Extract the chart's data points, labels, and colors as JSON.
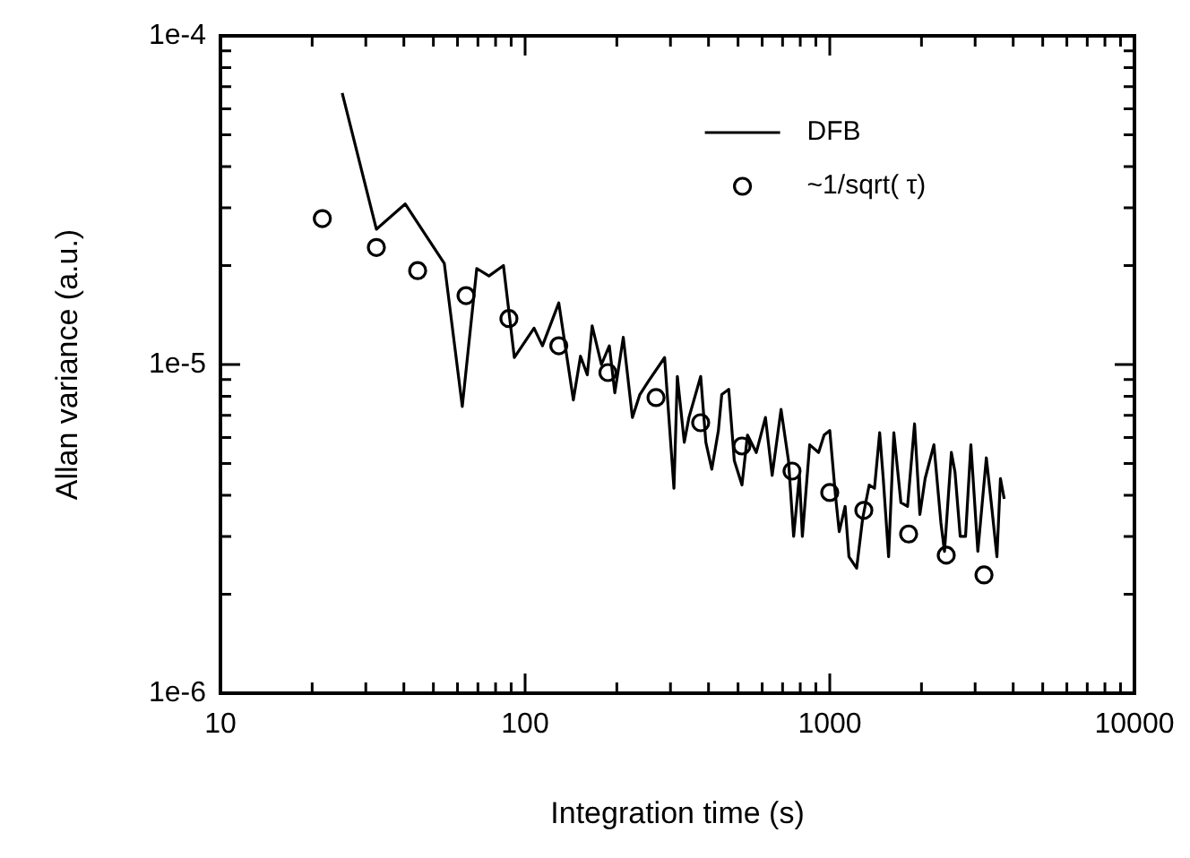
{
  "chart_data": {
    "type": "line",
    "xlabel": "Integration time (s)",
    "ylabel": "Allan variance (a.u.)",
    "log": "xy",
    "xlim": [
      10,
      10000
    ],
    "ylim": [
      1e-06,
      0.0001
    ],
    "xticks": [
      10,
      {
        "value": 20,
        "label": null
      },
      {
        "value": 30,
        "label": null
      },
      {
        "value": 40,
        "label": null
      },
      {
        "value": 50,
        "label": null
      },
      {
        "value": 60,
        "label": null
      },
      {
        "value": 70,
        "label": null
      },
      {
        "value": 80,
        "label": null
      },
      {
        "value": 90,
        "label": null
      },
      100,
      {
        "value": 200,
        "label": null
      },
      {
        "value": 300,
        "label": null
      },
      {
        "value": 400,
        "label": null
      },
      {
        "value": 500,
        "label": null
      },
      {
        "value": 600,
        "label": null
      },
      {
        "value": 700,
        "label": null
      },
      {
        "value": 800,
        "label": null
      },
      {
        "value": 900,
        "label": null
      },
      1000,
      {
        "value": 2000,
        "label": null
      },
      {
        "value": 3000,
        "label": null
      },
      {
        "value": 4000,
        "label": null
      },
      {
        "value": 5000,
        "label": null
      },
      {
        "value": 6000,
        "label": null
      },
      {
        "value": 7000,
        "label": null
      },
      {
        "value": 8000,
        "label": null
      },
      {
        "value": 9000,
        "label": null
      },
      10000
    ],
    "yticks": [
      {
        "value": 1e-06,
        "label": "1e-6"
      },
      {
        "value": 2e-06,
        "label": null
      },
      {
        "value": 3e-06,
        "label": null
      },
      {
        "value": 4e-06,
        "label": null
      },
      {
        "value": 5e-06,
        "label": null
      },
      {
        "value": 6e-06,
        "label": null
      },
      {
        "value": 7e-06,
        "label": null
      },
      {
        "value": 8e-06,
        "label": null
      },
      {
        "value": 9e-06,
        "label": null
      },
      {
        "value": 1e-05,
        "label": "1e-5"
      },
      {
        "value": 2e-05,
        "label": null
      },
      {
        "value": 3e-05,
        "label": null
      },
      {
        "value": 4e-05,
        "label": null
      },
      {
        "value": 5e-05,
        "label": null
      },
      {
        "value": 6e-05,
        "label": null
      },
      {
        "value": 7e-05,
        "label": null
      },
      {
        "value": 8e-05,
        "label": null
      },
      {
        "value": 9e-05,
        "label": null
      },
      {
        "value": 0.0001,
        "label": "1e-4"
      }
    ],
    "grid": false,
    "legend": "top right",
    "series": [
      {
        "name": "DFB",
        "type": "line",
        "color": "#000000",
        "marker": "none",
        "line_style": "solid",
        "x": [
          25.1,
          32.5,
          40.4,
          54.3,
          62.2,
          69.4,
          76.1,
          84.9,
          92.2,
          107,
          114,
          129,
          144,
          152,
          160,
          166,
          178,
          189,
          197,
          210,
          225,
          238,
          254,
          287,
          308,
          316,
          333,
          345,
          377,
          392,
          410,
          431,
          442,
          466,
          486,
          515,
          537,
          574,
          615,
          647,
          692,
          732,
          761,
          795,
          813,
          859,
          919,
          958,
          1000,
          1044,
          1074,
          1123,
          1156,
          1225,
          1282,
          1347,
          1402,
          1458,
          1498,
          1560,
          1623,
          1712,
          1800,
          1898,
          1976,
          2056,
          2197,
          2316,
          2380,
          2507,
          2577,
          2680,
          2790,
          2905,
          3062,
          3265,
          3399,
          3537,
          3632,
          3737
        ],
        "values": [
          6.7e-05,
          2.58e-05,
          3.08e-05,
          2.03e-05,
          7.45e-06,
          1.96e-05,
          1.86e-05,
          2e-05,
          1.05e-05,
          1.29e-05,
          1.14e-05,
          1.54e-05,
          7.8e-06,
          1.06e-05,
          9.3e-06,
          1.31e-05,
          1e-05,
          1.14e-05,
          8.2e-06,
          1.21e-05,
          6.9e-06,
          8.1e-06,
          8.9e-06,
          1.05e-05,
          4.2e-06,
          9.2e-06,
          5.8e-06,
          6.9e-06,
          9.2e-06,
          5.8e-06,
          4.8e-06,
          6.3e-06,
          8.1e-06,
          8.4e-06,
          5.1e-06,
          4.3e-06,
          6.1e-06,
          5.4e-06,
          6.9e-06,
          4.6e-06,
          7.3e-06,
          5.1e-06,
          3e-06,
          4.6e-06,
          3e-06,
          5.7e-06,
          5.4e-06,
          6.1e-06,
          6.3e-06,
          4e-06,
          3.1e-06,
          3.7e-06,
          2.6e-06,
          2.4e-06,
          3.4e-06,
          4.3e-06,
          4.2e-06,
          6.2e-06,
          4.5e-06,
          2.6e-06,
          6.2e-06,
          3.8e-06,
          3.7e-06,
          6.6e-06,
          3.5e-06,
          4.5e-06,
          5.7e-06,
          3.3e-06,
          2.7e-06,
          5.4e-06,
          4.7e-06,
          3e-06,
          3e-06,
          5.7e-06,
          2.7e-06,
          5.2e-06,
          3.7e-06,
          2.6e-06,
          4.5e-06,
          3.9e-06
        ]
      },
      {
        "name": "~1/sqrt( τ)",
        "type": "scatter",
        "color": "#000000",
        "marker": "circle",
        "x": [
          21.6,
          32.5,
          44.4,
          64,
          88.5,
          129,
          187,
          269,
          377,
          515,
          752,
          1000,
          1294,
          1815,
          2412,
          3208
        ],
        "values": [
          2.78e-05,
          2.27e-05,
          1.93e-05,
          1.62e-05,
          1.38e-05,
          1.14e-05,
          9.45e-06,
          7.93e-06,
          6.65e-06,
          5.65e-06,
          4.74e-06,
          4.08e-06,
          3.6e-06,
          3.05e-06,
          2.63e-06,
          2.29e-06
        ]
      }
    ]
  }
}
